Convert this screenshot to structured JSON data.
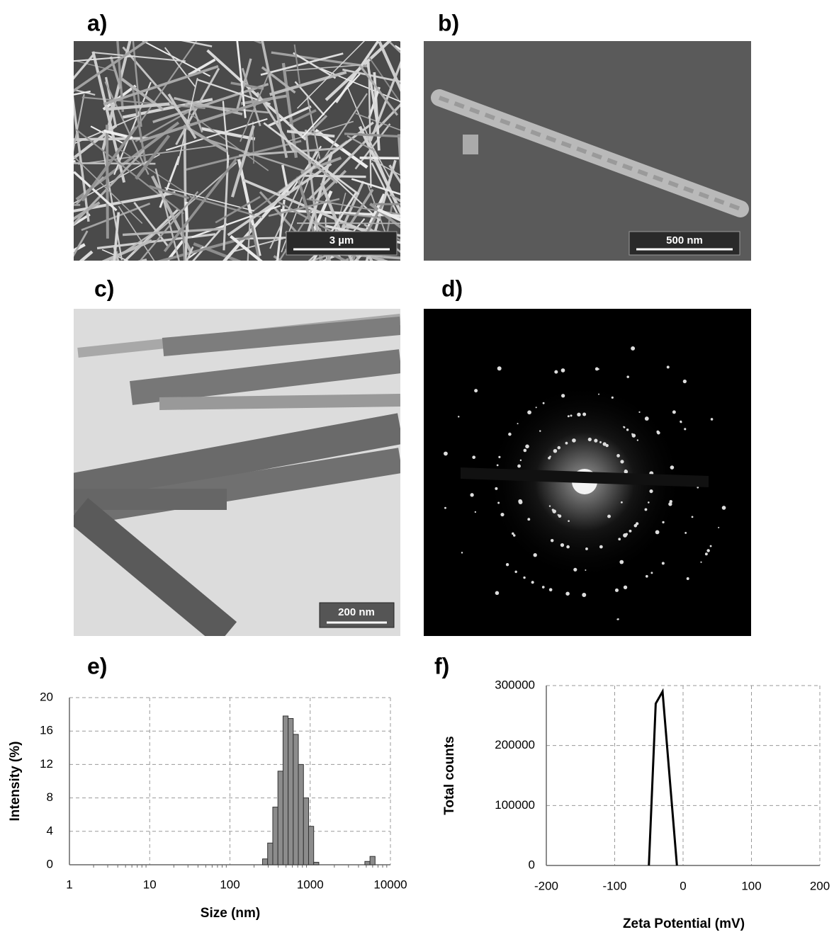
{
  "panels": [
    {
      "label": "a)",
      "scale_bar": "3 µm"
    },
    {
      "label": "b)",
      "scale_bar": "500 nm"
    },
    {
      "label": "c)",
      "scale_bar": "200 nm"
    },
    {
      "label": "d)"
    },
    {
      "label": "e)"
    },
    {
      "label": "f)"
    }
  ],
  "chart_data": [
    {
      "type": "histogram",
      "xlabel": "Size (nm)",
      "ylabel": "Intensity (%)",
      "log_x": true,
      "grid": true,
      "color": "#8c8c8c",
      "bins": [
        255,
        295,
        342,
        396,
        459,
        531,
        615,
        712,
        825,
        955,
        1106,
        1281,
        1484,
        1718,
        1990,
        2305,
        2669,
        3091,
        3580,
        4145,
        4801,
        5560,
        6439
      ],
      "counts": [
        0.7,
        2.6,
        6.9,
        11.2,
        17.8,
        17.5,
        15.6,
        12,
        8,
        4.6,
        0.3,
        0,
        0,
        0,
        0,
        0,
        0,
        0,
        0,
        0,
        0.4,
        1.0
      ],
      "xlim": [
        1,
        10000
      ],
      "xticks": [
        1,
        10,
        100,
        1000,
        10000
      ],
      "ylim": [
        0,
        20
      ],
      "yticks": [
        0,
        4,
        8,
        12,
        16,
        20
      ]
    },
    {
      "type": "line",
      "xlabel": "Zeta Potential (mV)",
      "ylabel": "Total counts",
      "grid": true,
      "color": "#000000",
      "x": [
        -50,
        -40,
        -30,
        -9
      ],
      "values": [
        0,
        270000,
        290000,
        0
      ],
      "xlim": [
        -200,
        200
      ],
      "xticks": [
        -200,
        -100,
        0,
        100,
        200
      ],
      "ylim": [
        0,
        300000
      ],
      "yticks": [
        0,
        100000,
        200000,
        300000
      ]
    }
  ]
}
